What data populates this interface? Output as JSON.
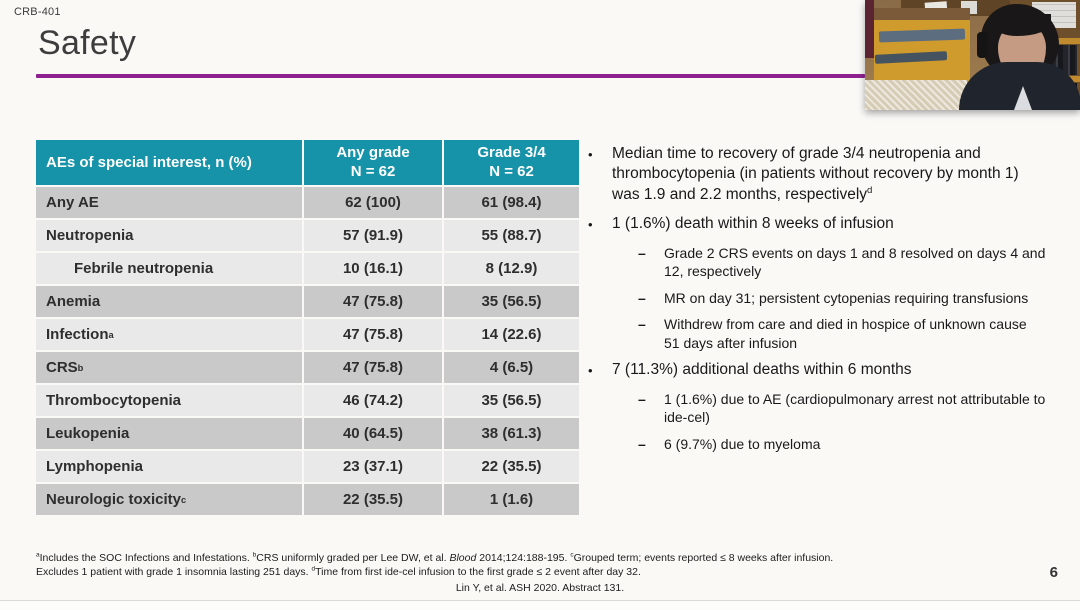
{
  "meta": {
    "study_label": "CRB-401",
    "page_number": "6"
  },
  "title": "Safety",
  "markers": {
    "bullet": "•",
    "dash": "–"
  },
  "table": {
    "header": {
      "col1": "AEs of special interest, n (%)",
      "col2": {
        "line1": "Any grade",
        "line2": "N = 62"
      },
      "col3": {
        "line1": "Grade 3/4",
        "line2": "N = 62"
      }
    },
    "rows": [
      {
        "label": "Any AE",
        "sup": "",
        "indent": false,
        "any_grade": "62 (100)",
        "grade_3_4": "61 (98.4)",
        "shade": "dark"
      },
      {
        "label": "Neutropenia",
        "sup": "",
        "indent": false,
        "any_grade": "57 (91.9)",
        "grade_3_4": "55 (88.7)",
        "shade": "light"
      },
      {
        "label": "Febrile neutropenia",
        "sup": "",
        "indent": true,
        "any_grade": "10 (16.1)",
        "grade_3_4": "8 (12.9)",
        "shade": "light"
      },
      {
        "label": "Anemia",
        "sup": "",
        "indent": false,
        "any_grade": "47 (75.8)",
        "grade_3_4": "35 (56.5)",
        "shade": "dark"
      },
      {
        "label": "Infection",
        "sup": "a",
        "indent": false,
        "any_grade": "47 (75.8)",
        "grade_3_4": "14 (22.6)",
        "shade": "light"
      },
      {
        "label": "CRS",
        "sup": "b",
        "indent": false,
        "any_grade": "47 (75.8)",
        "grade_3_4": "4 (6.5)",
        "shade": "dark"
      },
      {
        "label": "Thrombocytopenia",
        "sup": "",
        "indent": false,
        "any_grade": "46 (74.2)",
        "grade_3_4": "35 (56.5)",
        "shade": "light"
      },
      {
        "label": "Leukopenia",
        "sup": "",
        "indent": false,
        "any_grade": "40 (64.5)",
        "grade_3_4": "38 (61.3)",
        "shade": "dark"
      },
      {
        "label": "Lymphopenia",
        "sup": "",
        "indent": false,
        "any_grade": "23 (37.1)",
        "grade_3_4": "22 (35.5)",
        "shade": "light"
      },
      {
        "label": "Neurologic toxicity",
        "sup": "c",
        "indent": false,
        "any_grade": "22 (35.5)",
        "grade_3_4": "1 (1.6)",
        "shade": "dark"
      }
    ]
  },
  "bullets": [
    {
      "level": 1,
      "text": "Median time to recovery of grade 3/4 neutropenia and thrombocytopenia (in patients without recovery by month 1) was 1.9 and 2.2 months, respectively",
      "sup": "d"
    },
    {
      "level": 1,
      "text": "1 (1.6%) death within 8 weeks of infusion",
      "sup": ""
    },
    {
      "level": 2,
      "text": "Grade 2 CRS events on days 1 and 8 resolved on days 4 and 12, respectively",
      "sup": ""
    },
    {
      "level": 2,
      "text": "MR on day 31; persistent cytopenias requiring transfusions",
      "sup": ""
    },
    {
      "level": 2,
      "text": "Withdrew from care and died in hospice of unknown cause 51 days after infusion",
      "sup": ""
    },
    {
      "level": 1,
      "text": "7 (11.3%) additional deaths within 6 months",
      "sup": ""
    },
    {
      "level": 2,
      "text": "1 (1.6%) due to AE (cardiopulmonary arrest not attributable to ide-cel)",
      "sup": ""
    },
    {
      "level": 2,
      "text": "6 (9.7%) due to myeloma",
      "sup": ""
    }
  ],
  "footnotes": {
    "line1": [
      {
        "sup": "a",
        "text": "Includes the SOC Infections and Infestations. "
      },
      {
        "sup": "b",
        "text": "CRS uniformly graded per Lee DW, et al. "
      },
      {
        "italic": true,
        "text": "Blood"
      },
      {
        "text": " 2014;124:188-195. "
      },
      {
        "sup": "c",
        "text": "Grouped term; events reported ≤ 8 weeks after infusion."
      }
    ],
    "line2": [
      {
        "text": "Excludes 1 patient with grade 1 insomnia lasting 251 days. "
      },
      {
        "sup": "d",
        "text": "Time from first ide-cel infusion to the first grade ≤ 2 event after day 32."
      }
    ],
    "citation": "Lin Y, et al. ASH 2020. Abstract 131."
  },
  "colors": {
    "accent_purple": "#8e2190",
    "table_header_teal": "#1693a8",
    "row_dark": "#c9c9c9",
    "row_light": "#e9e9e9",
    "header_text": "#ffffff",
    "title_text": "#3d3d3d",
    "body_text": "#1f1f1f"
  }
}
